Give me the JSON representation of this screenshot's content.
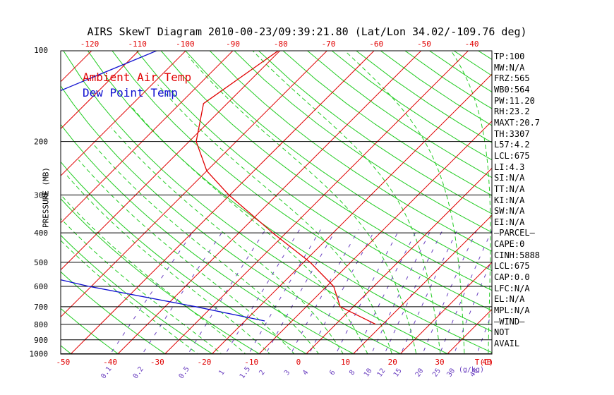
{
  "title": "AIRS SkewT Diagram 2010-00-23/09:39:21.80 (Lat/Lon 34.02/-109.76 deg)",
  "legend": {
    "air": "Ambient Air Temp",
    "dew": "Dew Point Temp"
  },
  "colors": {
    "air": "#e00000",
    "dew": "#1010d0",
    "dry_adiabat": "#22cc22",
    "moist_adiabat": "#22cc22",
    "mixing_ratio": "#6a3fc0",
    "isotherm": "#e00000",
    "isobar": "#000000"
  },
  "stats": [
    "TP:100",
    "MW:N/A",
    "FRZ:565",
    "WB0:564",
    "PW:11.20",
    "RH:23.2",
    "MAXT:20.7",
    "TH:3307",
    "L57:4.2",
    "LCL:675",
    "LI:4.3",
    "SI:N/A",
    "TT:N/A",
    "KI:N/A",
    "SW:N/A",
    "EI:N/A",
    "—PARCEL—",
    "CAPE:0",
    "CINH:5888",
    "LCL:675",
    "CAP:0.0",
    "LFC:N/A",
    "EL:N/A",
    "MPL:N/A",
    "—WIND—",
    "NOT",
    "AVAIL"
  ],
  "chart_data": {
    "type": "line",
    "title": "AIRS SkewT Diagram 2010-00-23/09:39:21.80 (Lat/Lon 34.02/-109.76 deg)",
    "ylabel": "PRESSURE (MB)",
    "xlabel": "T(C)",
    "y_scale": "log-pressure",
    "pressure_ticks": [
      100,
      200,
      300,
      400,
      500,
      600,
      700,
      800,
      900,
      1000
    ],
    "bottom_temp_ticks": [
      -50,
      -40,
      -30,
      -20,
      -10,
      0,
      10,
      20,
      30,
      40
    ],
    "top_temp_ticks": [
      -120,
      -110,
      -100,
      -90,
      -80,
      -70,
      -60,
      -50,
      -40
    ],
    "mixing_ratio_labels": [
      "0.1",
      "0.2",
      "0.5",
      "1",
      "1.5",
      "2",
      "3",
      "4",
      "6",
      "8",
      "10",
      "12",
      "15",
      "20",
      "25",
      "30",
      "40"
    ],
    "mixing_ratio_unit": "(g/kg)",
    "series": [
      {
        "name": "Ambient Air Temp",
        "points": [
          [
            100,
            -70.3
          ],
          [
            150,
            -75
          ],
          [
            200,
            -68.5
          ],
          [
            250,
            -60
          ],
          [
            300,
            -50.2
          ],
          [
            400,
            -32.8
          ],
          [
            500,
            -18.6
          ],
          [
            600,
            -8.5
          ],
          [
            700,
            -2.8
          ],
          [
            800,
            8.5
          ]
        ]
      },
      {
        "name": "Dew Point Temp",
        "points": [
          [
            100,
            -96
          ],
          [
            150,
            -112
          ],
          [
            200,
            -120
          ],
          [
            250,
            -120.5
          ],
          [
            300,
            -120
          ],
          [
            400,
            -117.2
          ],
          [
            500,
            -87.5
          ],
          [
            600,
            -60.5
          ],
          [
            700,
            -33.5
          ],
          [
            780,
            -15.8
          ]
        ]
      }
    ]
  }
}
